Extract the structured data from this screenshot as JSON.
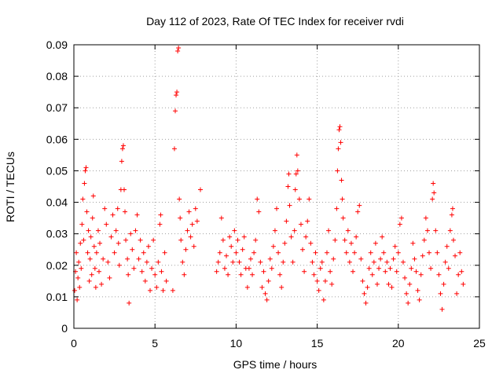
{
  "chart_data": {
    "type": "scatter",
    "title": "Day 112 of 2023, Rate Of TEC Index for receiver rvdi",
    "xlabel": "GPS time / hours",
    "ylabel": "ROTI / TECUs",
    "xlim": [
      0,
      25
    ],
    "ylim": [
      0,
      0.09
    ],
    "xticks": [
      0,
      5,
      10,
      15,
      20,
      25
    ],
    "xtick_labels": [
      "0",
      "5",
      "10",
      "15",
      "20",
      "25"
    ],
    "yticks": [
      0,
      0.01,
      0.02,
      0.03,
      0.04,
      0.05,
      0.06,
      0.07,
      0.08,
      0.09
    ],
    "ytick_labels": [
      "0",
      "0.01",
      "0.02",
      "0.03",
      "0.04",
      "0.05",
      "0.06",
      "0.07",
      "0.08",
      "0.09"
    ],
    "grid": true,
    "marker": "+",
    "marker_color": "#ff0000",
    "series": [
      {
        "name": "ROTI",
        "points": [
          [
            0.05,
            0.012
          ],
          [
            0.1,
            0.018
          ],
          [
            0.15,
            0.024
          ],
          [
            0.2,
            0.009
          ],
          [
            0.25,
            0.016
          ],
          [
            0.3,
            0.021
          ],
          [
            0.35,
            0.013
          ],
          [
            0.4,
            0.027
          ],
          [
            0.45,
            0.019
          ],
          [
            0.5,
            0.033
          ],
          [
            0.55,
            0.041
          ],
          [
            0.6,
            0.028
          ],
          [
            0.65,
            0.046
          ],
          [
            0.7,
            0.05
          ],
          [
            0.75,
            0.051
          ],
          [
            0.8,
            0.037
          ],
          [
            0.85,
            0.024
          ],
          [
            0.9,
            0.031
          ],
          [
            0.95,
            0.015
          ],
          [
            1.0,
            0.022
          ],
          [
            1.05,
            0.029
          ],
          [
            1.1,
            0.017
          ],
          [
            1.15,
            0.035
          ],
          [
            1.2,
            0.042
          ],
          [
            1.25,
            0.026
          ],
          [
            1.3,
            0.019
          ],
          [
            1.35,
            0.013
          ],
          [
            1.4,
            0.024
          ],
          [
            1.5,
            0.031
          ],
          [
            1.55,
            0.018
          ],
          [
            1.6,
            0.027
          ],
          [
            1.7,
            0.014
          ],
          [
            1.8,
            0.022
          ],
          [
            1.9,
            0.038
          ],
          [
            2.0,
            0.033
          ],
          [
            2.1,
            0.021
          ],
          [
            2.2,
            0.016
          ],
          [
            2.3,
            0.029
          ],
          [
            2.4,
            0.036
          ],
          [
            2.5,
            0.024
          ],
          [
            2.6,
            0.031
          ],
          [
            2.7,
            0.038
          ],
          [
            2.75,
            0.027
          ],
          [
            2.8,
            0.02
          ],
          [
            2.9,
            0.044
          ],
          [
            2.95,
            0.053
          ],
          [
            3.0,
            0.057
          ],
          [
            3.05,
            0.058
          ],
          [
            3.1,
            0.044
          ],
          [
            3.15,
            0.037
          ],
          [
            3.2,
            0.028
          ],
          [
            3.3,
            0.022
          ],
          [
            3.35,
            0.017
          ],
          [
            3.4,
            0.008
          ],
          [
            3.5,
            0.03
          ],
          [
            3.6,
            0.025
          ],
          [
            3.7,
            0.019
          ],
          [
            3.8,
            0.031
          ],
          [
            3.9,
            0.036
          ],
          [
            4.0,
            0.022
          ],
          [
            4.1,
            0.028
          ],
          [
            4.2,
            0.018
          ],
          [
            4.3,
            0.024
          ],
          [
            4.4,
            0.015
          ],
          [
            4.5,
            0.021
          ],
          [
            4.6,
            0.026
          ],
          [
            4.7,
            0.012
          ],
          [
            4.8,
            0.019
          ],
          [
            4.9,
            0.028
          ],
          [
            5.0,
            0.017
          ],
          [
            5.1,
            0.013
          ],
          [
            5.2,
            0.021
          ],
          [
            5.3,
            0.033
          ],
          [
            5.35,
            0.036
          ],
          [
            5.4,
            0.018
          ],
          [
            5.5,
            0.012
          ],
          [
            5.6,
            0.024
          ],
          [
            5.7,
            0.015
          ],
          [
            6.1,
            0.012
          ],
          [
            6.2,
            0.057
          ],
          [
            6.25,
            0.069
          ],
          [
            6.3,
            0.074
          ],
          [
            6.35,
            0.075
          ],
          [
            6.4,
            0.088
          ],
          [
            6.45,
            0.089
          ],
          [
            6.5,
            0.041
          ],
          [
            6.55,
            0.035
          ],
          [
            6.6,
            0.028
          ],
          [
            6.7,
            0.021
          ],
          [
            6.8,
            0.017
          ],
          [
            6.9,
            0.025
          ],
          [
            7.0,
            0.031
          ],
          [
            7.1,
            0.037
          ],
          [
            7.2,
            0.029
          ],
          [
            7.3,
            0.033
          ],
          [
            7.4,
            0.026
          ],
          [
            7.5,
            0.038
          ],
          [
            7.6,
            0.034
          ],
          [
            7.8,
            0.044
          ],
          [
            8.8,
            0.018
          ],
          [
            8.9,
            0.021
          ],
          [
            9.0,
            0.024
          ],
          [
            9.1,
            0.035
          ],
          [
            9.2,
            0.028
          ],
          [
            9.3,
            0.019
          ],
          [
            9.4,
            0.023
          ],
          [
            9.5,
            0.017
          ],
          [
            9.6,
            0.029
          ],
          [
            9.7,
            0.026
          ],
          [
            9.8,
            0.021
          ],
          [
            9.9,
            0.031
          ],
          [
            10.0,
            0.024
          ],
          [
            10.1,
            0.028
          ],
          [
            10.2,
            0.021
          ],
          [
            10.3,
            0.017
          ],
          [
            10.4,
            0.025
          ],
          [
            10.5,
            0.029
          ],
          [
            10.6,
            0.019
          ],
          [
            10.7,
            0.013
          ],
          [
            10.8,
            0.019
          ],
          [
            10.9,
            0.022
          ],
          [
            11.0,
            0.017
          ],
          [
            11.1,
            0.024
          ],
          [
            11.2,
            0.028
          ],
          [
            11.3,
            0.041
          ],
          [
            11.4,
            0.037
          ],
          [
            11.5,
            0.021
          ],
          [
            11.6,
            0.013
          ],
          [
            11.7,
            0.018
          ],
          [
            11.8,
            0.011
          ],
          [
            11.9,
            0.009
          ],
          [
            12.0,
            0.015
          ],
          [
            12.1,
            0.022
          ],
          [
            12.2,
            0.019
          ],
          [
            12.3,
            0.026
          ],
          [
            12.4,
            0.031
          ],
          [
            12.5,
            0.038
          ],
          [
            12.6,
            0.024
          ],
          [
            12.7,
            0.017
          ],
          [
            12.8,
            0.013
          ],
          [
            12.9,
            0.021
          ],
          [
            13.0,
            0.027
          ],
          [
            13.1,
            0.034
          ],
          [
            13.2,
            0.045
          ],
          [
            13.25,
            0.049
          ],
          [
            13.3,
            0.039
          ],
          [
            13.4,
            0.029
          ],
          [
            13.5,
            0.021
          ],
          [
            13.6,
            0.031
          ],
          [
            13.65,
            0.044
          ],
          [
            13.7,
            0.049
          ],
          [
            13.75,
            0.055
          ],
          [
            13.8,
            0.05
          ],
          [
            13.9,
            0.041
          ],
          [
            14.0,
            0.033
          ],
          [
            14.1,
            0.025
          ],
          [
            14.2,
            0.018
          ],
          [
            14.3,
            0.029
          ],
          [
            14.4,
            0.034
          ],
          [
            14.5,
            0.041
          ],
          [
            14.6,
            0.027
          ],
          [
            14.7,
            0.021
          ],
          [
            14.8,
            0.017
          ],
          [
            14.9,
            0.024
          ],
          [
            15.0,
            0.015
          ],
          [
            15.1,
            0.012
          ],
          [
            15.2,
            0.019
          ],
          [
            15.3,
            0.021
          ],
          [
            15.4,
            0.009
          ],
          [
            15.5,
            0.015
          ],
          [
            15.6,
            0.024
          ],
          [
            15.7,
            0.031
          ],
          [
            15.8,
            0.018
          ],
          [
            15.9,
            0.014
          ],
          [
            16.0,
            0.022
          ],
          [
            16.1,
            0.028
          ],
          [
            16.2,
            0.038
          ],
          [
            16.25,
            0.05
          ],
          [
            16.3,
            0.057
          ],
          [
            16.35,
            0.063
          ],
          [
            16.4,
            0.064
          ],
          [
            16.45,
            0.059
          ],
          [
            16.5,
            0.047
          ],
          [
            16.55,
            0.041
          ],
          [
            16.6,
            0.035
          ],
          [
            16.7,
            0.028
          ],
          [
            16.8,
            0.024
          ],
          [
            16.9,
            0.031
          ],
          [
            17.0,
            0.021
          ],
          [
            17.1,
            0.027
          ],
          [
            17.2,
            0.018
          ],
          [
            17.3,
            0.024
          ],
          [
            17.4,
            0.029
          ],
          [
            17.5,
            0.037
          ],
          [
            17.6,
            0.039
          ],
          [
            17.7,
            0.022
          ],
          [
            17.8,
            0.015
          ],
          [
            17.9,
            0.011
          ],
          [
            18.0,
            0.008
          ],
          [
            18.1,
            0.013
          ],
          [
            18.2,
            0.019
          ],
          [
            18.3,
            0.024
          ],
          [
            18.4,
            0.017
          ],
          [
            18.5,
            0.021
          ],
          [
            18.6,
            0.027
          ],
          [
            18.7,
            0.014
          ],
          [
            18.8,
            0.019
          ],
          [
            18.9,
            0.022
          ],
          [
            19.0,
            0.029
          ],
          [
            19.1,
            0.024
          ],
          [
            19.2,
            0.018
          ],
          [
            19.3,
            0.021
          ],
          [
            19.4,
            0.014
          ],
          [
            19.5,
            0.019
          ],
          [
            19.6,
            0.013
          ],
          [
            19.7,
            0.022
          ],
          [
            19.8,
            0.026
          ],
          [
            19.9,
            0.018
          ],
          [
            20.0,
            0.024
          ],
          [
            20.1,
            0.033
          ],
          [
            20.2,
            0.035
          ],
          [
            20.3,
            0.021
          ],
          [
            20.4,
            0.016
          ],
          [
            20.5,
            0.011
          ],
          [
            20.6,
            0.008
          ],
          [
            20.7,
            0.014
          ],
          [
            20.8,
            0.019
          ],
          [
            20.9,
            0.027
          ],
          [
            21.0,
            0.022
          ],
          [
            21.1,
            0.018
          ],
          [
            21.2,
            0.012
          ],
          [
            21.3,
            0.009
          ],
          [
            21.4,
            0.017
          ],
          [
            21.5,
            0.023
          ],
          [
            21.6,
            0.028
          ],
          [
            21.7,
            0.035
          ],
          [
            21.8,
            0.031
          ],
          [
            21.9,
            0.024
          ],
          [
            22.0,
            0.019
          ],
          [
            22.1,
            0.041
          ],
          [
            22.15,
            0.046
          ],
          [
            22.2,
            0.043
          ],
          [
            22.3,
            0.031
          ],
          [
            22.4,
            0.024
          ],
          [
            22.5,
            0.017
          ],
          [
            22.6,
            0.011
          ],
          [
            22.7,
            0.006
          ],
          [
            22.8,
            0.014
          ],
          [
            22.9,
            0.021
          ],
          [
            23.0,
            0.026
          ],
          [
            23.1,
            0.019
          ],
          [
            23.2,
            0.031
          ],
          [
            23.3,
            0.036
          ],
          [
            23.35,
            0.038
          ],
          [
            23.4,
            0.028
          ],
          [
            23.5,
            0.023
          ],
          [
            23.6,
            0.011
          ],
          [
            23.7,
            0.017
          ],
          [
            23.8,
            0.024
          ],
          [
            23.9,
            0.018
          ],
          [
            24.0,
            0.014
          ]
        ]
      }
    ]
  }
}
